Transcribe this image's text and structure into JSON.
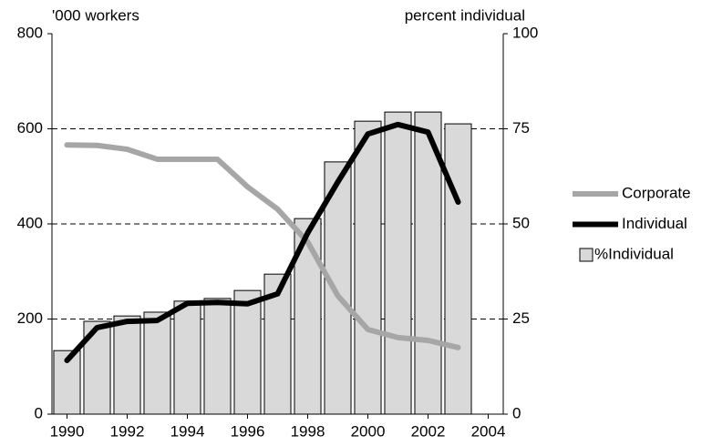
{
  "chart_data": {
    "type": "combo",
    "y_label": "'000 workers",
    "y2_label": "percent individual",
    "x": [
      1990,
      1991,
      1992,
      1993,
      1994,
      1995,
      1996,
      1997,
      1998,
      1999,
      2000,
      2001,
      2002,
      2003
    ],
    "xlim": [
      1989.5,
      2004.5
    ],
    "xticks": [
      1990,
      1992,
      1994,
      1996,
      1998,
      2000,
      2002,
      2004
    ],
    "ylim": [
      0,
      800
    ],
    "yticks": [
      0,
      200,
      400,
      600,
      800
    ],
    "y2lim": [
      0,
      100
    ],
    "y2ticks": [
      0,
      25,
      50,
      75,
      100
    ],
    "grid": true,
    "legend": "right",
    "series": [
      {
        "name": "Corporate",
        "type": "line",
        "color": "#a6a6a6",
        "values": [
          566,
          565,
          557,
          536,
          536,
          536,
          478,
          431,
          362,
          249,
          178,
          161,
          155,
          140
        ]
      },
      {
        "name": "Individual",
        "type": "line",
        "color": "#000000",
        "values": [
          113,
          182,
          195,
          197,
          233,
          235,
          232,
          253,
          381,
          488,
          589,
          609,
          593,
          446
        ]
      },
      {
        "name": "%Individual",
        "type": "bar",
        "axis": "y2",
        "color": "#d9d9d9",
        "values": [
          16.7,
          24.4,
          25.8,
          26.8,
          29.7,
          30.4,
          32.5,
          36.8,
          51.4,
          66.3,
          77,
          79.4,
          79.4,
          76.3
        ]
      }
    ]
  }
}
